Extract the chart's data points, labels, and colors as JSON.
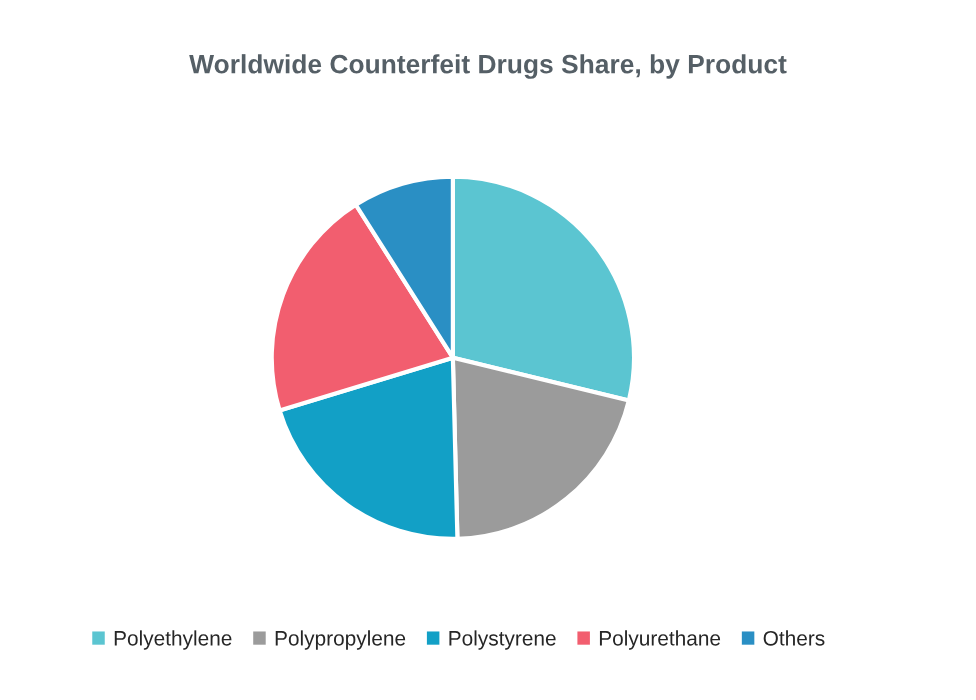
{
  "chart_data": {
    "type": "pie",
    "title": "Worldwide Counterfeit Drugs Share, by Product",
    "categories": [
      "Polyethylene",
      "Polypropylene",
      "Polystyrene",
      "Polyurethane",
      "Others"
    ],
    "values": [
      28.8,
      20.8,
      20.7,
      20.7,
      9.0
    ],
    "colors": [
      "#5bc5d1",
      "#9b9b9b",
      "#12a0c6",
      "#f25e6f",
      "#2a8fc4"
    ],
    "legend": "bottom"
  }
}
